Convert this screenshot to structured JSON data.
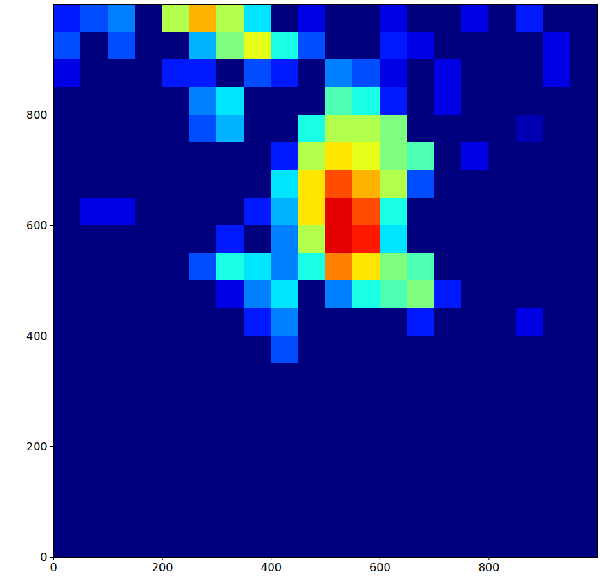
{
  "chart_data": {
    "type": "heatmap",
    "x": [
      0,
      50,
      100,
      150,
      200,
      250,
      300,
      350,
      400,
      450,
      500,
      550,
      600,
      650,
      700,
      750,
      800,
      850,
      900,
      950,
      1000
    ],
    "y": [
      0,
      50,
      100,
      150,
      200,
      250,
      300,
      350,
      400,
      450,
      500,
      550,
      600,
      650,
      700,
      750,
      800,
      850,
      900,
      950,
      1000
    ],
    "values": [
      [
        0,
        0,
        0,
        0,
        0,
        0,
        0,
        0,
        0,
        0,
        0,
        0,
        0,
        0,
        0,
        0,
        0,
        0,
        0,
        0
      ],
      [
        0,
        0,
        0,
        0,
        0,
        0,
        0,
        0,
        0,
        0,
        0,
        0,
        0,
        0,
        0,
        0,
        0,
        0,
        0,
        0
      ],
      [
        0,
        0,
        0,
        0,
        0,
        0,
        0,
        0,
        0,
        0,
        0,
        0,
        0,
        0,
        0,
        0,
        0,
        0,
        0,
        0
      ],
      [
        0,
        0,
        0,
        0,
        0,
        0,
        0,
        0,
        0,
        0,
        0,
        0,
        0,
        0,
        0,
        0,
        0,
        0,
        0,
        0
      ],
      [
        0,
        0,
        0,
        0,
        0,
        0,
        0,
        0,
        0,
        0,
        0,
        0,
        0,
        0,
        0,
        0,
        0,
        0,
        0,
        0
      ],
      [
        0,
        0,
        0,
        0,
        0,
        0,
        0,
        0,
        0,
        0,
        0,
        0,
        0,
        0,
        0,
        0,
        0,
        0,
        0,
        0
      ],
      [
        0,
        0,
        0,
        0,
        0,
        0,
        0,
        0,
        0,
        0,
        0,
        0,
        0,
        0,
        0,
        0,
        0,
        0,
        0,
        0
      ],
      [
        0,
        0,
        0,
        0,
        0,
        0,
        0,
        0,
        20,
        0,
        0,
        0,
        0,
        0,
        0,
        0,
        0,
        0,
        0,
        0
      ],
      [
        0,
        0,
        0,
        0,
        0,
        0,
        0,
        15,
        25,
        0,
        0,
        0,
        0,
        15,
        0,
        0,
        0,
        10,
        0,
        0
      ],
      [
        0,
        0,
        0,
        0,
        0,
        0,
        10,
        25,
        35,
        0,
        25,
        40,
        45,
        50,
        15,
        0,
        0,
        0,
        0,
        0
      ],
      [
        0,
        0,
        0,
        0,
        0,
        20,
        40,
        35,
        25,
        40,
        75,
        65,
        50,
        45,
        0,
        0,
        0,
        0,
        0,
        0
      ],
      [
        0,
        0,
        0,
        0,
        0,
        0,
        15,
        0,
        25,
        55,
        90,
        85,
        35,
        0,
        0,
        0,
        0,
        0,
        0,
        0
      ],
      [
        0,
        10,
        10,
        0,
        0,
        0,
        0,
        15,
        30,
        65,
        90,
        80,
        40,
        0,
        0,
        0,
        0,
        0,
        0,
        0
      ],
      [
        0,
        0,
        0,
        0,
        0,
        0,
        0,
        0,
        35,
        65,
        80,
        70,
        55,
        20,
        0,
        0,
        0,
        0,
        0,
        0
      ],
      [
        0,
        0,
        0,
        0,
        0,
        0,
        0,
        0,
        15,
        55,
        65,
        60,
        50,
        45,
        0,
        10,
        0,
        0,
        0,
        0
      ],
      [
        0,
        0,
        0,
        0,
        0,
        20,
        30,
        0,
        0,
        40,
        55,
        55,
        50,
        0,
        0,
        0,
        0,
        5,
        0,
        0
      ],
      [
        0,
        0,
        0,
        0,
        0,
        25,
        35,
        0,
        0,
        0,
        45,
        40,
        15,
        0,
        10,
        0,
        0,
        0,
        0,
        0
      ],
      [
        10,
        0,
        0,
        0,
        15,
        15,
        0,
        20,
        15,
        0,
        25,
        20,
        10,
        0,
        10,
        0,
        0,
        0,
        10,
        0
      ],
      [
        20,
        0,
        20,
        0,
        0,
        30,
        50,
        60,
        40,
        20,
        0,
        0,
        15,
        10,
        0,
        0,
        0,
        0,
        10,
        0
      ],
      [
        15,
        20,
        25,
        0,
        55,
        70,
        55,
        35,
        0,
        10,
        0,
        0,
        10,
        0,
        0,
        10,
        0,
        15,
        0,
        0
      ]
    ],
    "color_range": [
      0,
      100
    ],
    "xlim": [
      0,
      1000
    ],
    "ylim": [
      0,
      1000
    ],
    "xticks": [
      0,
      200,
      400,
      600,
      800
    ],
    "yticks": [
      0,
      200,
      400,
      600,
      800
    ],
    "grid": false
  }
}
